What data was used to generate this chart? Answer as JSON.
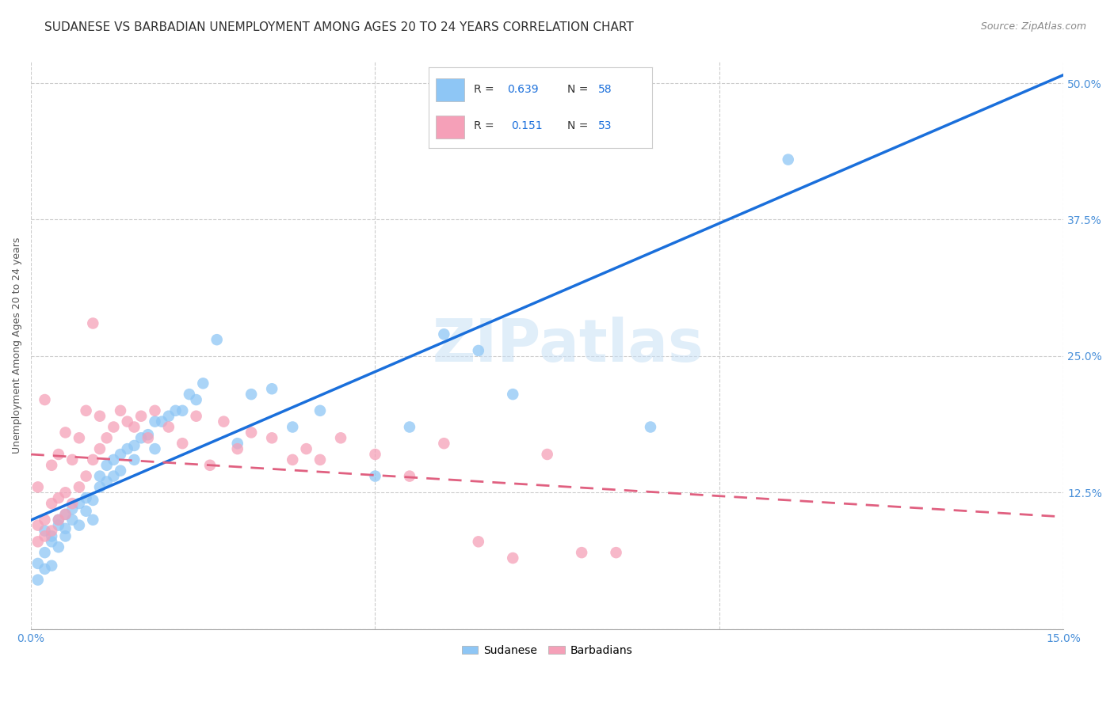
{
  "title": "SUDANESE VS BARBADIAN UNEMPLOYMENT AMONG AGES 20 TO 24 YEARS CORRELATION CHART",
  "source": "Source: ZipAtlas.com",
  "ylabel": "Unemployment Among Ages 20 to 24 years",
  "xlim": [
    0.0,
    0.15
  ],
  "ylim": [
    0.0,
    0.52
  ],
  "xticks": [
    0.0,
    0.05,
    0.1,
    0.15
  ],
  "xtick_labels": [
    "0.0%",
    "",
    "",
    "15.0%"
  ],
  "yticks": [
    0.0,
    0.125,
    0.25,
    0.375,
    0.5
  ],
  "ytick_labels": [
    "",
    "12.5%",
    "25.0%",
    "37.5%",
    "50.0%"
  ],
  "title_fontsize": 11,
  "tick_fontsize": 10,
  "source_fontsize": 9,
  "color_sudanese": "#8ec6f5",
  "color_barbadian": "#f5a0b8",
  "color_line_sudanese": "#1a6fdb",
  "color_line_barbadian": "#e06080",
  "watermark": "ZIPatlas",
  "sudanese_x": [
    0.001,
    0.001,
    0.002,
    0.002,
    0.002,
    0.003,
    0.003,
    0.003,
    0.004,
    0.004,
    0.004,
    0.005,
    0.005,
    0.005,
    0.006,
    0.006,
    0.007,
    0.007,
    0.008,
    0.008,
    0.009,
    0.009,
    0.01,
    0.01,
    0.011,
    0.011,
    0.012,
    0.012,
    0.013,
    0.013,
    0.014,
    0.015,
    0.015,
    0.016,
    0.017,
    0.018,
    0.018,
    0.019,
    0.02,
    0.021,
    0.022,
    0.023,
    0.024,
    0.025,
    0.027,
    0.03,
    0.032,
    0.035,
    0.038,
    0.042,
    0.05,
    0.055,
    0.06,
    0.065,
    0.07,
    0.075,
    0.09,
    0.11
  ],
  "sudanese_y": [
    0.06,
    0.045,
    0.07,
    0.055,
    0.09,
    0.058,
    0.085,
    0.08,
    0.075,
    0.1,
    0.095,
    0.092,
    0.085,
    0.105,
    0.1,
    0.11,
    0.095,
    0.115,
    0.108,
    0.12,
    0.118,
    0.1,
    0.13,
    0.14,
    0.135,
    0.15,
    0.14,
    0.155,
    0.16,
    0.145,
    0.165,
    0.155,
    0.168,
    0.175,
    0.178,
    0.165,
    0.19,
    0.19,
    0.195,
    0.2,
    0.2,
    0.215,
    0.21,
    0.225,
    0.265,
    0.17,
    0.215,
    0.22,
    0.185,
    0.2,
    0.14,
    0.185,
    0.27,
    0.255,
    0.215,
    0.48,
    0.185,
    0.43
  ],
  "barbadian_x": [
    0.001,
    0.001,
    0.001,
    0.002,
    0.002,
    0.002,
    0.003,
    0.003,
    0.003,
    0.004,
    0.004,
    0.004,
    0.005,
    0.005,
    0.005,
    0.006,
    0.006,
    0.007,
    0.007,
    0.008,
    0.008,
    0.009,
    0.009,
    0.01,
    0.01,
    0.011,
    0.012,
    0.013,
    0.014,
    0.015,
    0.016,
    0.017,
    0.018,
    0.02,
    0.022,
    0.024,
    0.026,
    0.028,
    0.03,
    0.032,
    0.035,
    0.038,
    0.04,
    0.042,
    0.045,
    0.05,
    0.055,
    0.06,
    0.065,
    0.07,
    0.075,
    0.08,
    0.085
  ],
  "barbadian_y": [
    0.08,
    0.095,
    0.13,
    0.085,
    0.1,
    0.21,
    0.09,
    0.115,
    0.15,
    0.1,
    0.12,
    0.16,
    0.105,
    0.125,
    0.18,
    0.115,
    0.155,
    0.13,
    0.175,
    0.14,
    0.2,
    0.155,
    0.28,
    0.165,
    0.195,
    0.175,
    0.185,
    0.2,
    0.19,
    0.185,
    0.195,
    0.175,
    0.2,
    0.185,
    0.17,
    0.195,
    0.15,
    0.19,
    0.165,
    0.18,
    0.175,
    0.155,
    0.165,
    0.155,
    0.175,
    0.16,
    0.14,
    0.17,
    0.08,
    0.065,
    0.16,
    0.07,
    0.07
  ]
}
